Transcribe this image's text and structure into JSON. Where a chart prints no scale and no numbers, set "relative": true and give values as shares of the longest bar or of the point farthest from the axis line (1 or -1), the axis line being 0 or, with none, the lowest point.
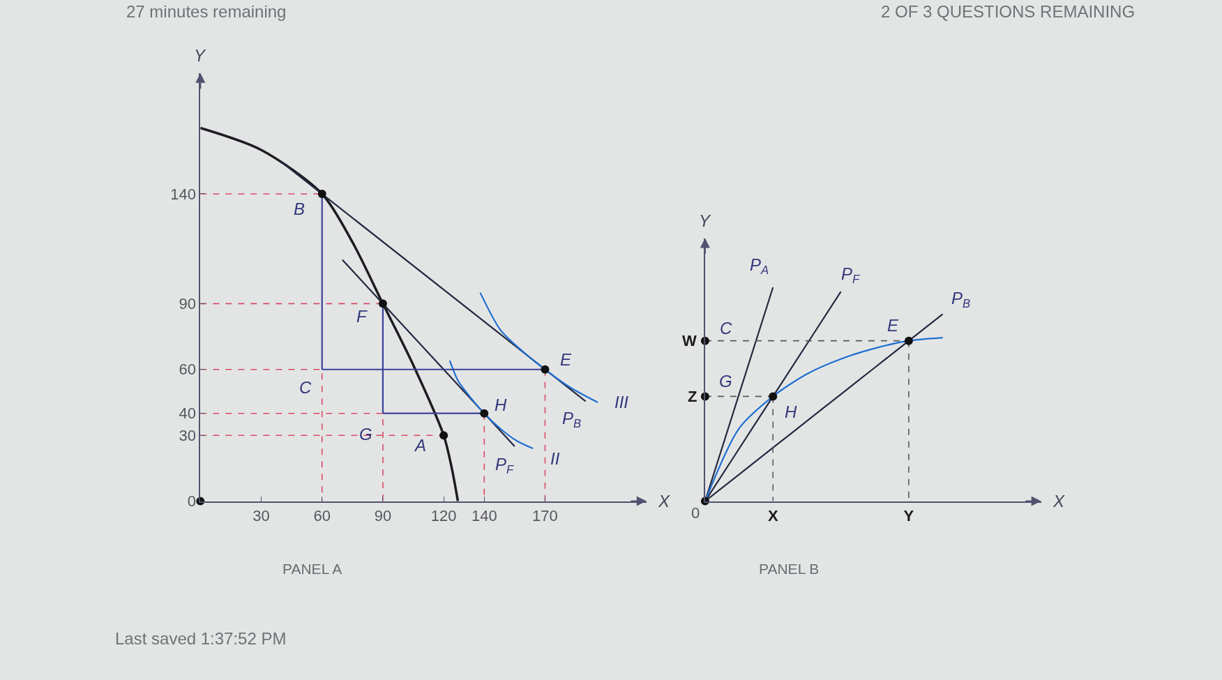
{
  "chart_data": [
    {
      "type": "line",
      "title": "PANEL A",
      "xlabel": "X",
      "ylabel": "Y",
      "xlim": [
        0,
        220
      ],
      "ylim": [
        0,
        195
      ],
      "xticks": [
        30,
        60,
        90,
        120,
        140,
        170
      ],
      "yticks": [
        0,
        30,
        40,
        60,
        90,
        140
      ],
      "series": [
        {
          "color": "#1c1c22",
          "x": [
            0,
            30,
            60,
            75,
            90,
            105,
            120,
            124,
            127
          ],
          "values": [
            170,
            160,
            140,
            118,
            90,
            62,
            30,
            15,
            0
          ]
        },
        {
          "color": "#26283f",
          "x": [
            40,
            190
          ],
          "values": [
            154.5,
            45.5
          ]
        },
        {
          "color": "#26283f",
          "x": [
            70,
            155
          ],
          "values": [
            110,
            25
          ]
        },
        {
          "color": "#1f6fd1",
          "x": [
            138,
            148,
            158,
            170,
            183,
            196
          ],
          "values": [
            95,
            78,
            69,
            60,
            51.5,
            45
          ]
        },
        {
          "color": "#1f6fd1",
          "x": [
            123,
            127,
            133,
            140,
            148,
            156,
            164
          ],
          "values": [
            64,
            55,
            47.5,
            40,
            33,
            27.5,
            24
          ]
        },
        {
          "color": "#d94a64",
          "line_style": "dashed",
          "x": [
            0,
            60
          ],
          "values": [
            140,
            140
          ]
        },
        {
          "color": "#d94a64",
          "line_style": "dashed",
          "x": [
            0,
            90
          ],
          "values": [
            90,
            90
          ]
        },
        {
          "color": "#d94a64",
          "line_style": "dashed",
          "x": [
            0,
            60,
            60
          ],
          "values": [
            60,
            60,
            0
          ]
        },
        {
          "color": "#d94a64",
          "line_style": "dashed",
          "x": [
            0,
            90,
            90
          ],
          "values": [
            40,
            40,
            0
          ]
        },
        {
          "color": "#d94a64",
          "line_style": "dashed",
          "x": [
            0,
            120
          ],
          "values": [
            30,
            30
          ]
        },
        {
          "color": "#d94a64",
          "line_style": "dashed",
          "x": [
            140,
            140
          ],
          "values": [
            40,
            0
          ]
        },
        {
          "color": "#d94a64",
          "line_style": "dashed",
          "x": [
            170,
            170
          ],
          "values": [
            60,
            0
          ]
        },
        {
          "color": "#3b4199",
          "x": [
            60,
            60
          ],
          "values": [
            140,
            60
          ]
        },
        {
          "color": "#3b4199",
          "x": [
            60,
            170
          ],
          "values": [
            60,
            60
          ]
        },
        {
          "color": "#3b4199",
          "x": [
            90,
            90
          ],
          "values": [
            90,
            40
          ]
        },
        {
          "color": "#3b4199",
          "x": [
            90,
            140
          ],
          "values": [
            40,
            40
          ]
        },
        {
          "type": "scatter",
          "color": "#111111",
          "marker": "circle",
          "x": [
            0,
            60,
            90,
            120,
            140,
            170
          ],
          "values": [
            0,
            140,
            90,
            30,
            40,
            60
          ]
        }
      ],
      "annotations": [
        {
          "text": "B",
          "x": 60,
          "y": 140
        },
        {
          "text": "F",
          "x": 90,
          "y": 90
        },
        {
          "text": "C",
          "x": 60,
          "y": 60
        },
        {
          "text": "G",
          "x": 90,
          "y": 40
        },
        {
          "text": "A",
          "x": 120,
          "y": 30
        },
        {
          "text": "E",
          "x": 170,
          "y": 60
        },
        {
          "text": "H",
          "x": 140,
          "y": 40
        },
        {
          "text": "III",
          "x": 196,
          "y": 45
        },
        {
          "text": "P$_{B}$",
          "x": 190,
          "y": 45.5
        },
        {
          "text": "II",
          "x": 164,
          "y": 24
        },
        {
          "text": "P$_{F}$",
          "x": 155,
          "y": 25
        },
        "27 minutes remaining",
        "2 OF 3 QUESTIONS REMAINING",
        "Last saved 1:37:52 PM"
      ]
    },
    {
      "type": "line",
      "relative": true,
      "title": "PANEL B",
      "xlabel": "X",
      "ylabel": "Y",
      "categories": [
        null,
        null,
        "X",
        null,
        null,
        null,
        "Y",
        null,
        null,
        null
      ],
      "series": [
        {
          "color": "#26283f",
          "values": [
            0,
            0.5,
            1,
            null,
            null,
            null,
            null,
            null,
            null,
            null
          ]
        },
        {
          "color": "#26283f",
          "values": [
            0,
            0.245,
            0.49,
            0.735,
            0.98,
            null,
            null,
            null,
            null,
            null
          ]
        },
        {
          "color": "#26283f",
          "values": [
            0,
            0.125,
            0.25,
            0.375,
            0.5,
            0.625,
            0.75,
            0.875,
            null,
            null
          ]
        },
        {
          "color": "#1f6fd1",
          "values": [
            0,
            0.34,
            0.49,
            0.595,
            0.665,
            0.715,
            0.75,
            0.765,
            null,
            null
          ]
        },
        {
          "color": "#55575e",
          "line_style": "dashed",
          "values": [
            0.75,
            0.75,
            0.75,
            0.75,
            0.75,
            0.75,
            0.75,
            null,
            null,
            null
          ]
        },
        {
          "color": "#55575e",
          "line_style": "dashed",
          "x": [
            "Y",
            "Y"
          ],
          "values": [
            0.75,
            0
          ]
        },
        {
          "color": "#55575e",
          "line_style": "dashed",
          "values": [
            0.49,
            0.49,
            0.49,
            null,
            null,
            null,
            null,
            null,
            null,
            null
          ]
        },
        {
          "color": "#55575e",
          "line_style": "dashed",
          "x": [
            "X",
            "X"
          ],
          "values": [
            0.49,
            0
          ]
        },
        {
          "type": "scatter",
          "color": "#111111",
          "marker": "circle",
          "values": [
            0.75,
            null,
            null,
            null,
            null,
            null,
            0.75,
            null,
            null,
            null
          ]
        },
        {
          "type": "scatter",
          "color": "#111111",
          "marker": "circle",
          "values": [
            0.49,
            null,
            0.49,
            null,
            null,
            null,
            null,
            null,
            null,
            null
          ]
        },
        {
          "type": "scatter",
          "color": "#111111",
          "marker": "circle",
          "values": [
            0,
            null,
            null,
            null,
            null,
            null,
            null,
            null,
            null,
            null
          ]
        }
      ],
      "annotations": [
        {
          "text": "C",
          "y": 0.75
        },
        {
          "text": "G",
          "y": 0.49
        },
        {
          "text": "E",
          "x": "Y",
          "y": 0.75
        },
        {
          "text": "H",
          "x": "X",
          "y": 0.49
        },
        {
          "text": "P$_{A}$",
          "x": "X",
          "y": 1
        },
        "W",
        "Z",
        "0",
        "P$_{F}$",
        "P$_{B}$"
      ]
    }
  ]
}
